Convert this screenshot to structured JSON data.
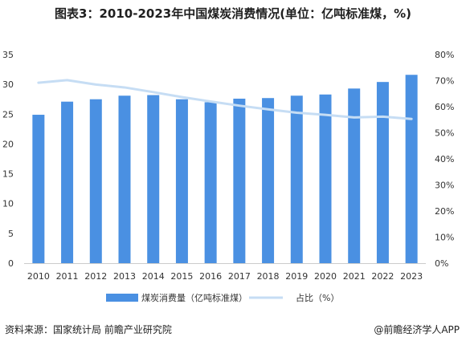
{
  "title": "图表3：2010-2023年中国煤炭消费情况(单位：亿吨标准煤，%)",
  "footer": {
    "source": "资料来源：国家统计局 前瞻产业研究院",
    "brand": "@前瞻经济学人APP"
  },
  "colors": {
    "bar": "#4a90e2",
    "line": "#c6ddf4",
    "axis": "#cccccc",
    "text": "#333333"
  },
  "chart_data": {
    "type": "bar",
    "categories": [
      "2010",
      "2011",
      "2012",
      "2013",
      "2014",
      "2015",
      "2016",
      "2017",
      "2018",
      "2019",
      "2020",
      "2021",
      "2022",
      "2023"
    ],
    "series": [
      {
        "name": "煤炭消费量（亿吨标准煤）",
        "type": "bar",
        "axis": "left",
        "values": [
          24.9,
          27.1,
          27.5,
          28.1,
          28.2,
          27.5,
          27.0,
          27.6,
          27.7,
          28.1,
          28.3,
          29.3,
          30.4,
          31.6
        ]
      },
      {
        "name": "占比（%）",
        "type": "line",
        "axis": "right",
        "values": [
          69.2,
          70.2,
          68.5,
          67.4,
          65.6,
          63.7,
          62.0,
          60.4,
          59.0,
          57.7,
          56.9,
          55.9,
          56.2,
          55.3
        ]
      }
    ],
    "y_left": {
      "min": 0,
      "max": 35,
      "ticks": [
        0,
        5,
        10,
        15,
        20,
        25,
        30,
        35
      ]
    },
    "y_right": {
      "min": 0,
      "max": 80,
      "ticks": [
        "0%",
        "10%",
        "20%",
        "30%",
        "40%",
        "50%",
        "60%",
        "70%",
        "80%"
      ]
    },
    "grid": false,
    "legend_position": "bottom"
  }
}
